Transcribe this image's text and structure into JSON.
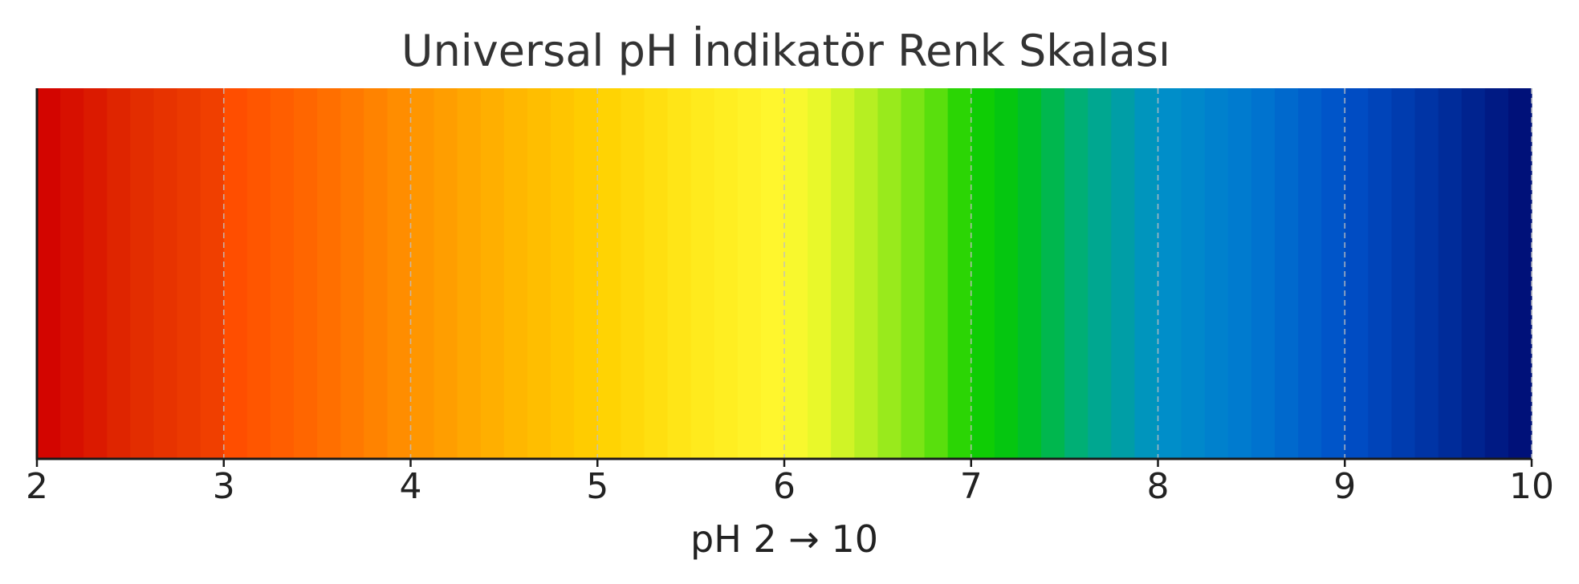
{
  "chart_data": {
    "type": "heatmap",
    "title": "Universal pH İndikatör Renk Skalası",
    "xlabel": "pH 2 → 10",
    "ylabel": "",
    "xlim": [
      2,
      10
    ],
    "xticks": [
      2,
      3,
      4,
      5,
      6,
      7,
      8,
      9,
      10
    ],
    "tick_labels": [
      "2",
      "3",
      "4",
      "5",
      "6",
      "7",
      "8",
      "9",
      "10"
    ],
    "grid": true,
    "grid_style": "dashed vertical lines at each integer pH",
    "legend": "none",
    "color_stops": [
      {
        "ph": 2.0,
        "color": "#d10000"
      },
      {
        "ph": 2.5,
        "color": "#e12a00"
      },
      {
        "ph": 2.95,
        "color": "#f04000"
      },
      {
        "ph": 3.0,
        "color": "#ff4a00"
      },
      {
        "ph": 3.5,
        "color": "#ff6a00"
      },
      {
        "ph": 4.0,
        "color": "#ff9200"
      },
      {
        "ph": 4.5,
        "color": "#ffb300"
      },
      {
        "ph": 5.0,
        "color": "#ffd000"
      },
      {
        "ph": 5.5,
        "color": "#ffe81a"
      },
      {
        "ph": 6.0,
        "color": "#fff830"
      },
      {
        "ph": 6.2,
        "color": "#e8f82a"
      },
      {
        "ph": 6.5,
        "color": "#a9ec20"
      },
      {
        "ph": 6.8,
        "color": "#5ee00e"
      },
      {
        "ph": 7.0,
        "color": "#14d000"
      },
      {
        "ph": 7.25,
        "color": "#00c315"
      },
      {
        "ph": 7.6,
        "color": "#00ad80"
      },
      {
        "ph": 8.0,
        "color": "#0091c8"
      },
      {
        "ph": 8.5,
        "color": "#0078d0"
      },
      {
        "ph": 9.0,
        "color": "#0050c8"
      },
      {
        "ph": 9.5,
        "color": "#0030a0"
      },
      {
        "ph": 10.0,
        "color": "#000d73"
      }
    ]
  },
  "colors": {
    "axis": "#1a1a1a",
    "grid": "#bfbfbf",
    "title": "#333333",
    "text": "#222222"
  }
}
